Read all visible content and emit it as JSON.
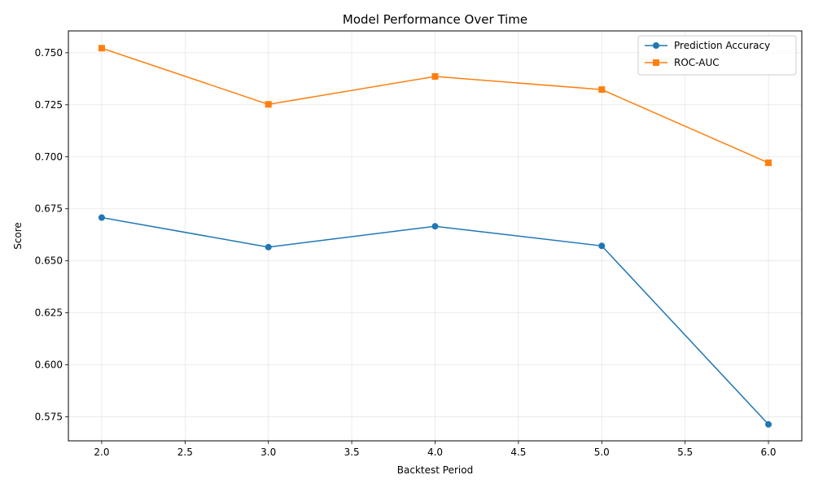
{
  "chart_data": {
    "type": "line",
    "title": "Model Performance Over Time",
    "xlabel": "Backtest Period",
    "ylabel": "Score",
    "x": [
      2,
      3,
      4,
      5,
      6
    ],
    "xlim": [
      1.8,
      6.2
    ],
    "ylim": [
      0.5635,
      0.7605
    ],
    "xticks": [
      "2.0",
      "2.5",
      "3.0",
      "3.5",
      "4.0",
      "4.5",
      "5.0",
      "5.5",
      "6.0"
    ],
    "yticks": [
      "0.575",
      "0.600",
      "0.625",
      "0.650",
      "0.675",
      "0.700",
      "0.725",
      "0.750"
    ],
    "grid": true,
    "legend_position": "top-right",
    "series": [
      {
        "name": "Prediction Accuracy",
        "values": [
          0.6708,
          0.6566,
          0.6666,
          0.6572,
          0.5714
        ],
        "color": "#1f77b4",
        "marker": "circle"
      },
      {
        "name": "ROC-AUC",
        "values": [
          0.7522,
          0.7252,
          0.7386,
          0.7323,
          0.6971
        ],
        "color": "#ff7f0e",
        "marker": "square"
      }
    ]
  }
}
